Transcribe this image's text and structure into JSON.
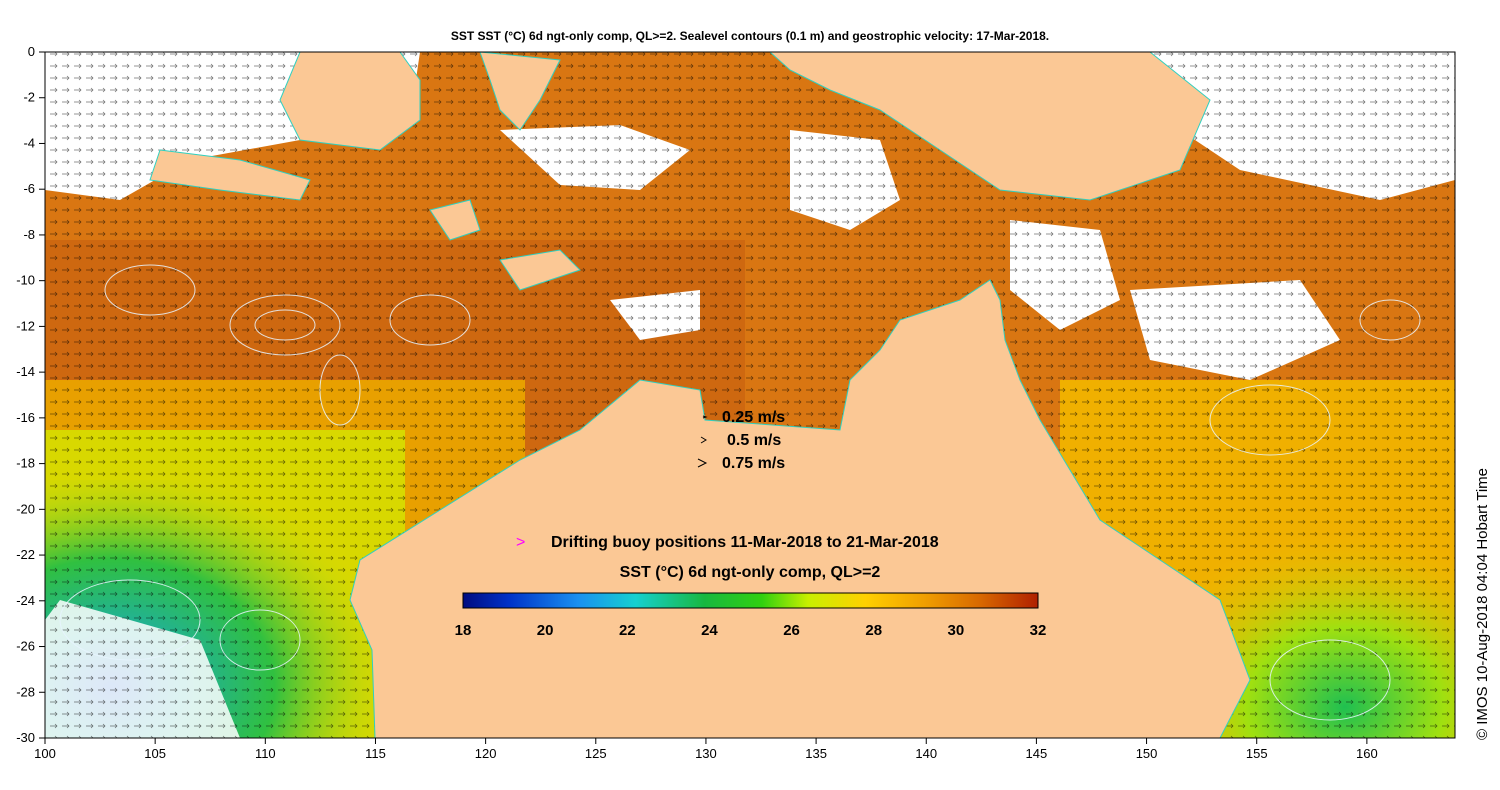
{
  "title": "SST SST (°C) 6d ngt-only comp, QL>=2. Sealevel contours (0.1 m) and geostrophic velocity: 17-Mar-2018.",
  "side_credit": "© IMOS 10-Aug-2018 04:04 Hobart Time",
  "axes": {
    "x_ticks": [
      "100",
      "105",
      "110",
      "115",
      "120",
      "125",
      "130",
      "135",
      "140",
      "145",
      "150",
      "155",
      "160"
    ],
    "y_ticks": [
      "0",
      "-2",
      "-4",
      "-6",
      "-8",
      "-10",
      "-12",
      "-14",
      "-16",
      "-18",
      "-20",
      "-22",
      "-24",
      "-26",
      "-28",
      "-30"
    ],
    "xlim": [
      100,
      164
    ],
    "ylim": [
      -30,
      0
    ]
  },
  "velocity_legend": [
    {
      "label": "0.25 m/s"
    },
    {
      "label": "0.5 m/s"
    },
    {
      "label": "0.75 m/s"
    }
  ],
  "buoy_legend": {
    "symbol": ">",
    "label": "Drifting buoy positions 11-Mar-2018 to 21-Mar-2018"
  },
  "colorbar": {
    "title": "SST (°C) 6d ngt-only comp, QL>=2",
    "ticks": [
      "18",
      "20",
      "22",
      "24",
      "26",
      "28",
      "30",
      "32"
    ],
    "range": [
      18,
      32
    ]
  },
  "colors": {
    "land": "#fbc895",
    "ocean_warm": "#d77012",
    "ocean_hot": "#c05010",
    "contour": "#e8f4ff",
    "coast": "#30d0c0",
    "buoy": "#ff00ff"
  }
}
